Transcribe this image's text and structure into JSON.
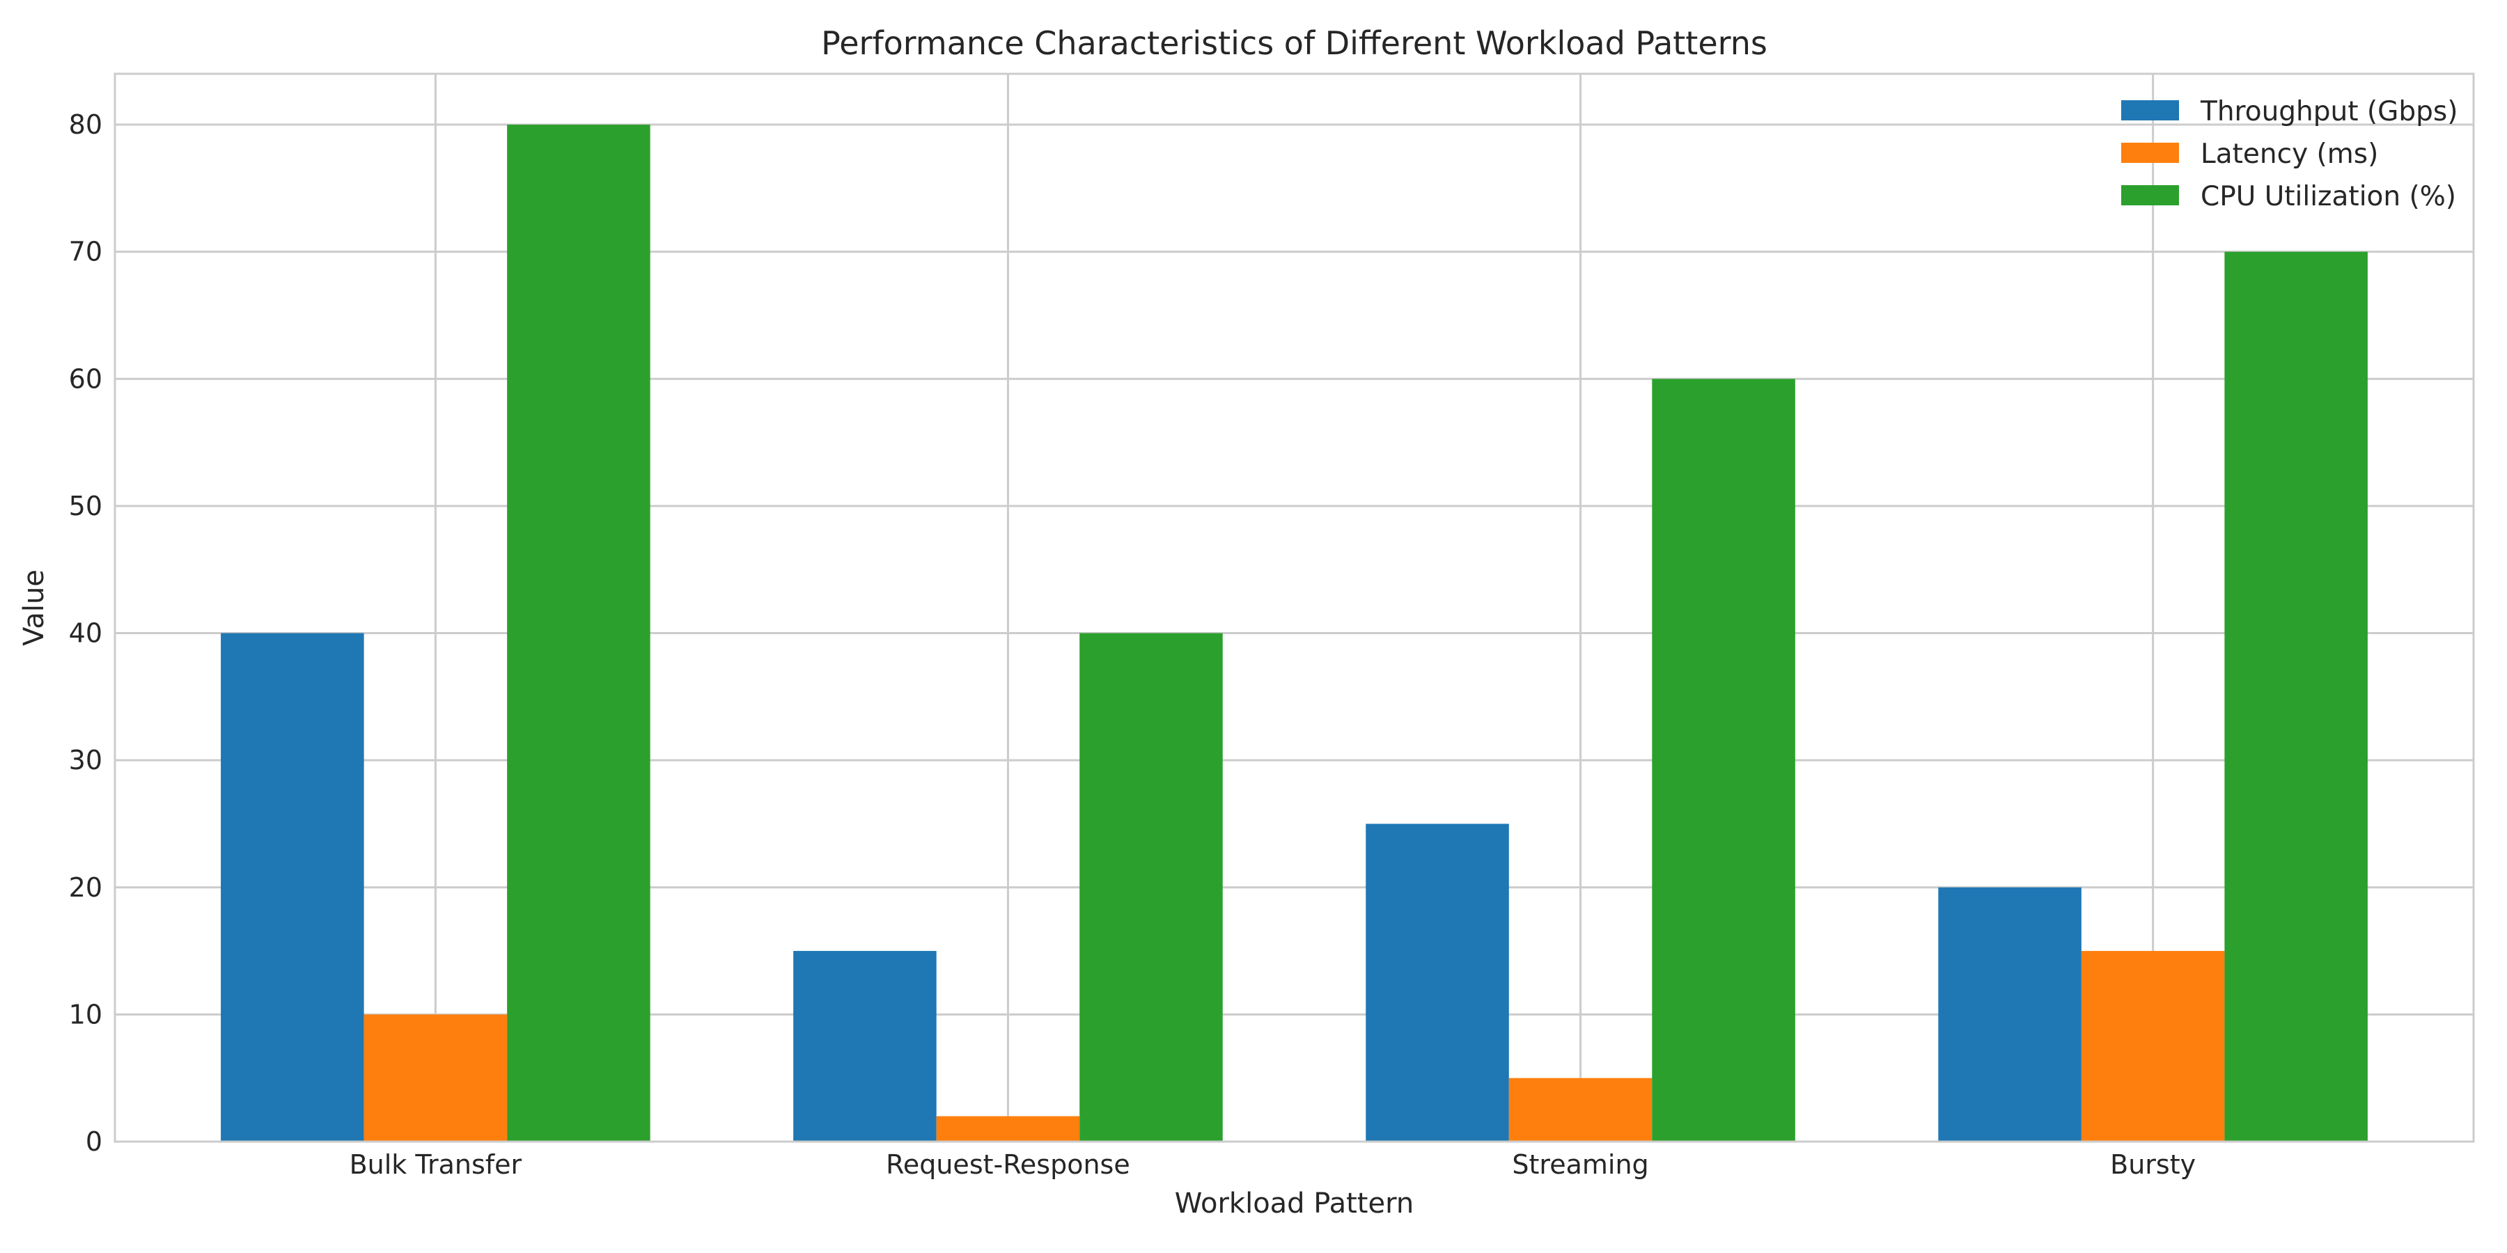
{
  "chart_data": {
    "type": "bar",
    "title": "Performance Characteristics of Different Workload Patterns",
    "xlabel": "Workload Pattern",
    "ylabel": "Value",
    "categories": [
      "Bulk Transfer",
      "Request-Response",
      "Streaming",
      "Bursty"
    ],
    "series": [
      {
        "name": "Throughput (Gbps)",
        "values": [
          40,
          15,
          25,
          20
        ],
        "color": "#1f77b4"
      },
      {
        "name": "Latency (ms)",
        "values": [
          10,
          2,
          5,
          15
        ],
        "color": "#ff7f0e"
      },
      {
        "name": "CPU Utilization (%)",
        "values": [
          80,
          40,
          60,
          70
        ],
        "color": "#2ca02c"
      }
    ],
    "ylim": [
      0,
      84
    ],
    "yticks": [
      0,
      10,
      20,
      30,
      40,
      50,
      60,
      70,
      80
    ],
    "grid": true,
    "legend_position": "top-right"
  }
}
